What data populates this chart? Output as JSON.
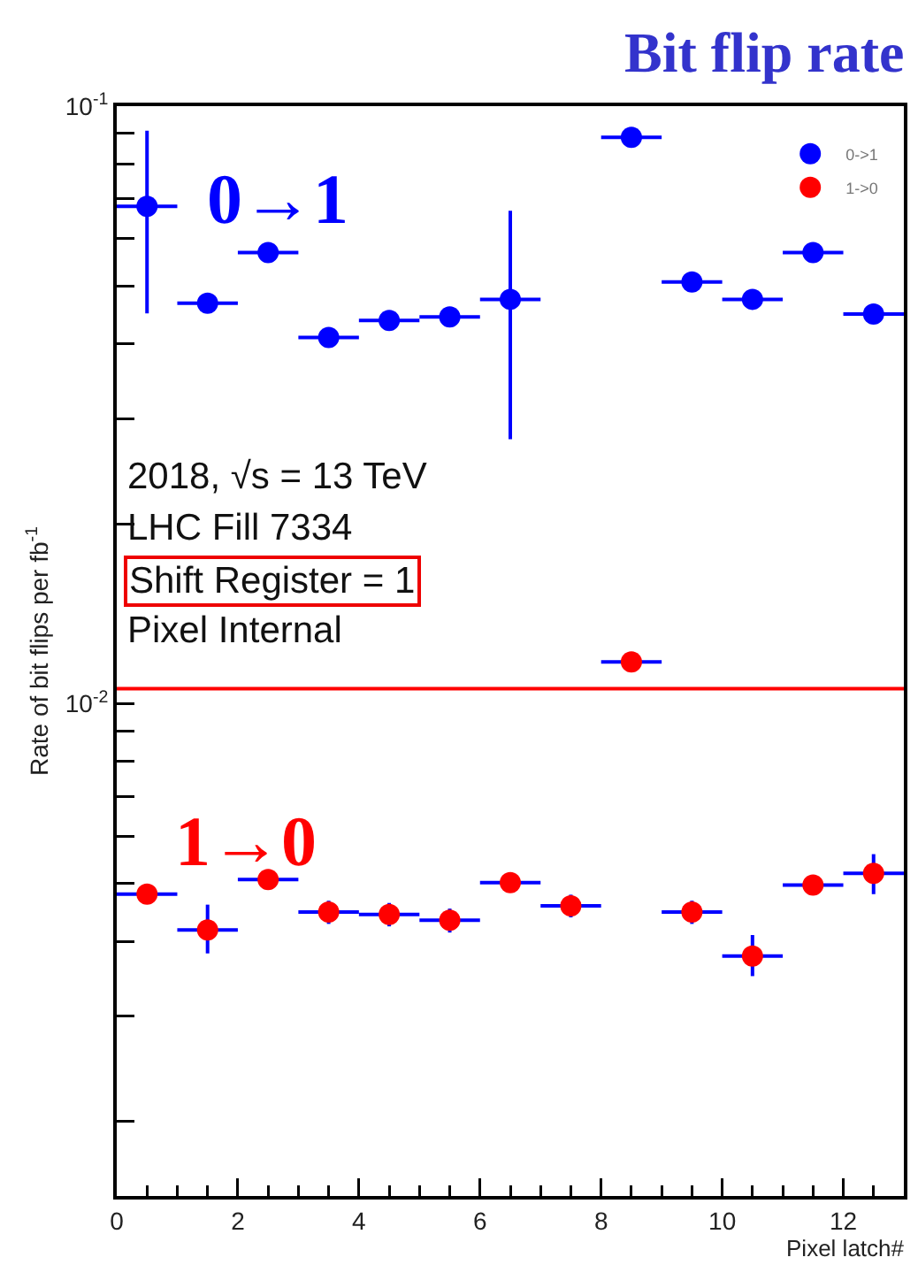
{
  "chart_data": {
    "type": "scatter",
    "title": "Bit flip rate",
    "xlabel": "Pixel latch#",
    "ylabel": "Rate of bit flips per fb$^{-1}$",
    "x": [
      0.5,
      1.5,
      2.5,
      3.5,
      4.5,
      5.5,
      6.5,
      7.5,
      8.5,
      9.5,
      10.5,
      11.5,
      12.5
    ],
    "series": [
      {
        "name": "0->1",
        "color": "#0000ff",
        "values": [
          0.068,
          0.0468,
          0.0569,
          0.041,
          0.0438,
          0.0444,
          0.0475,
          null,
          0.0887,
          0.0508,
          0.0475,
          0.0569,
          0.0449
        ],
        "errors": [
          [
            0.045,
            0.091
          ],
          null,
          null,
          null,
          null,
          null,
          [
            0.0277,
            0.0668
          ],
          null,
          null,
          null,
          null,
          null,
          null
        ],
        "xerrors": [
          0.5,
          0.5,
          0.5,
          0.5,
          0.5,
          0.5,
          0.5,
          null,
          0.5,
          0.5,
          0.5,
          0.5,
          0.5
        ]
      },
      {
        "name": "1->0",
        "color": "#ff0000",
        "values": [
          0.0048,
          0.00418,
          0.00508,
          0.00448,
          0.00444,
          0.00434,
          0.00502,
          0.00459,
          0.01175,
          0.00448,
          0.00378,
          0.00497,
          0.0052
        ],
        "errors": [
          null,
          [
            0.00382,
            0.00461
          ],
          null,
          0.0002,
          0.0002,
          0.0002,
          null,
          0.0002,
          null,
          0.0002,
          [
            0.0035,
            0.0041
          ],
          null,
          [
            0.0048,
            0.0056
          ]
        ],
        "xerrors": [
          0.5,
          0.5,
          0.5,
          0.5,
          0.5,
          0.5,
          0.5,
          0.5,
          0.5,
          0.5,
          0.5,
          0.5,
          0.5
        ]
      }
    ],
    "xlim": [
      0,
      13
    ],
    "xticks": [
      0,
      2,
      4,
      6,
      8,
      10,
      12
    ],
    "ylim": [
      0.0015,
      0.1
    ],
    "yticks": [
      {
        "value": 0.002,
        "label": null
      },
      {
        "value": 0.003,
        "label": null
      },
      {
        "value": 0.004,
        "label": null
      },
      {
        "value": 0.005,
        "label": null
      },
      {
        "value": 0.006,
        "label": null
      },
      {
        "value": 0.007,
        "label": null
      },
      {
        "value": 0.008,
        "label": null
      },
      {
        "value": 0.009,
        "label": null
      },
      {
        "value": 0.01,
        "label": "10$^{-2}$"
      },
      {
        "value": 0.02,
        "label": null
      },
      {
        "value": 0.03,
        "label": null
      },
      {
        "value": 0.04,
        "label": null
      },
      {
        "value": 0.05,
        "label": null
      },
      {
        "value": 0.06,
        "label": null
      },
      {
        "value": 0.07,
        "label": null
      },
      {
        "value": 0.08,
        "label": null
      },
      {
        "value": 0.09,
        "label": null
      },
      {
        "value": 0.1,
        "label": "10$^{-1}$"
      }
    ],
    "log": "y",
    "grid": false,
    "legend": "top right",
    "marker": "circle",
    "ref_lines": [
      {
        "axis": "y",
        "value": 0.0106,
        "color": "#ff0000"
      }
    ],
    "annotations": [
      "0→1",
      "1→0",
      "2018, √s = 13 TeV",
      "LHC Fill 7334",
      "Shift Register = 1",
      "Pixel Internal"
    ]
  }
}
